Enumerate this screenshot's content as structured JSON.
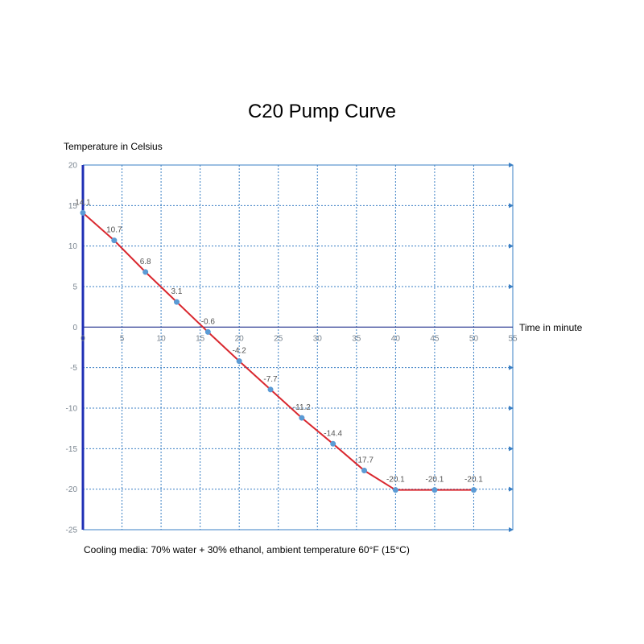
{
  "chart_data": {
    "type": "line",
    "title": "C20 Pump Curve",
    "ylabel": "Temperature in Celsius",
    "xlabel": "Time in minute",
    "note": "Cooling media: 70% water + 30% ethanol, ambient temperature 60°F (15°C)",
    "xlim": [
      0,
      55
    ],
    "ylim": [
      -25,
      20
    ],
    "x_ticks": [
      0,
      5,
      10,
      15,
      20,
      25,
      30,
      35,
      40,
      45,
      50,
      55
    ],
    "y_ticks": [
      20,
      15,
      10,
      5,
      0,
      -5,
      -10,
      -15,
      -20,
      -25
    ],
    "grid": true,
    "series": [
      {
        "x": [
          0,
          4,
          8,
          12,
          16,
          20,
          24,
          28,
          32,
          36,
          40,
          45,
          50
        ],
        "values": [
          14.1,
          10.7,
          6.8,
          3.1,
          -0.6,
          -4.2,
          -7.7,
          -11.2,
          -14.4,
          -17.7,
          -20.1,
          -20.1,
          -20.1
        ],
        "labels": [
          "14.1",
          "10.7",
          "6.8",
          "3.1",
          "-0.6",
          "-4.2",
          "-7.7",
          "-11.2",
          "-14.4",
          "-17.7",
          "-20.1",
          "-20.1",
          "-20.1"
        ],
        "line_color": "#d9282f",
        "marker_color": "#5b9bd5"
      }
    ],
    "colors": {
      "grid": "#3a7fc4",
      "y_axis": "#1f2fb5",
      "x_axis": "#1a2a8a",
      "tick_text": "#7a8590"
    }
  }
}
